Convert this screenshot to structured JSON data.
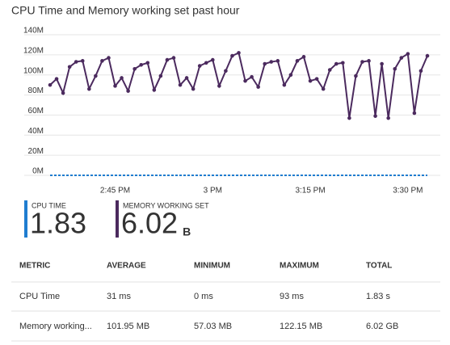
{
  "chart_data": {
    "type": "line",
    "title": "CPU Time and Memory working set past hour",
    "categories": [
      null,
      null,
      null,
      null,
      null,
      null,
      null,
      null,
      null,
      null,
      "2:45 PM",
      null,
      null,
      null,
      null,
      null,
      null,
      null,
      null,
      null,
      null,
      null,
      null,
      null,
      null,
      "3 PM",
      null,
      null,
      null,
      null,
      null,
      null,
      null,
      null,
      null,
      null,
      null,
      null,
      null,
      null,
      "3:15 PM",
      null,
      null,
      null,
      null,
      null,
      null,
      null,
      null,
      null,
      null,
      null,
      null,
      null,
      null,
      "3:30 PM",
      null,
      null,
      null
    ],
    "series": [
      {
        "name": "CPU Time",
        "color": "#1f7dd0",
        "style": "dashed",
        "markers": false,
        "values": [
          0,
          0,
          0,
          0,
          0,
          0,
          0,
          0,
          0,
          0,
          0,
          0,
          0,
          0,
          0,
          0,
          0,
          0,
          0,
          0,
          0,
          0,
          0,
          0,
          0,
          0,
          0,
          0,
          0,
          0,
          0,
          0,
          0,
          0,
          0,
          0,
          0,
          0,
          0,
          0,
          0,
          0,
          0,
          0,
          0,
          0,
          0,
          0,
          0,
          0,
          0,
          0,
          0,
          0,
          0,
          0,
          0,
          0,
          0
        ]
      },
      {
        "name": "Memory working set",
        "color": "#4b2a5e",
        "style": "solid",
        "markers": true,
        "values": [
          90,
          96,
          82,
          108,
          113,
          114,
          86,
          99,
          114,
          117,
          89,
          97,
          84,
          106,
          110,
          112,
          85,
          99,
          115,
          117,
          90,
          97,
          86,
          109,
          112,
          115,
          89,
          104,
          119,
          122,
          94,
          98,
          88,
          111,
          113,
          114,
          90,
          100,
          114,
          118,
          94,
          96,
          86,
          105,
          111,
          112,
          57,
          99,
          113,
          114,
          59,
          111,
          57,
          106,
          117,
          121,
          62,
          104,
          119
        ]
      }
    ],
    "ylim": [
      0,
      140
    ],
    "yticks": [
      {
        "value": 0,
        "label": "0M"
      },
      {
        "value": 20,
        "label": "20M"
      },
      {
        "value": 40,
        "label": "40M"
      },
      {
        "value": 60,
        "label": "60M"
      },
      {
        "value": 80,
        "label": "80M"
      },
      {
        "value": 100,
        "label": "100M"
      },
      {
        "value": 120,
        "label": "120M"
      },
      {
        "value": 140,
        "label": "140M"
      }
    ],
    "grid": true
  },
  "summary": [
    {
      "label": "CPU TIME",
      "value": "1.83",
      "color": "#1f7dd0"
    },
    {
      "label": "MEMORY WORKING SET",
      "value": "6.02",
      "unit": "B",
      "color": "#4b2a5e"
    }
  ],
  "table": {
    "header": [
      "METRIC",
      "AVERAGE",
      "MINIMUM",
      "MAXIMUM",
      "TOTAL"
    ],
    "rows": [
      [
        "CPU Time",
        "31 ms",
        "0 ms",
        "93 ms",
        "1.83 s"
      ],
      [
        "Memory working...",
        "101.95 MB",
        "57.03 MB",
        "122.15 MB",
        "6.02 GB"
      ]
    ]
  }
}
